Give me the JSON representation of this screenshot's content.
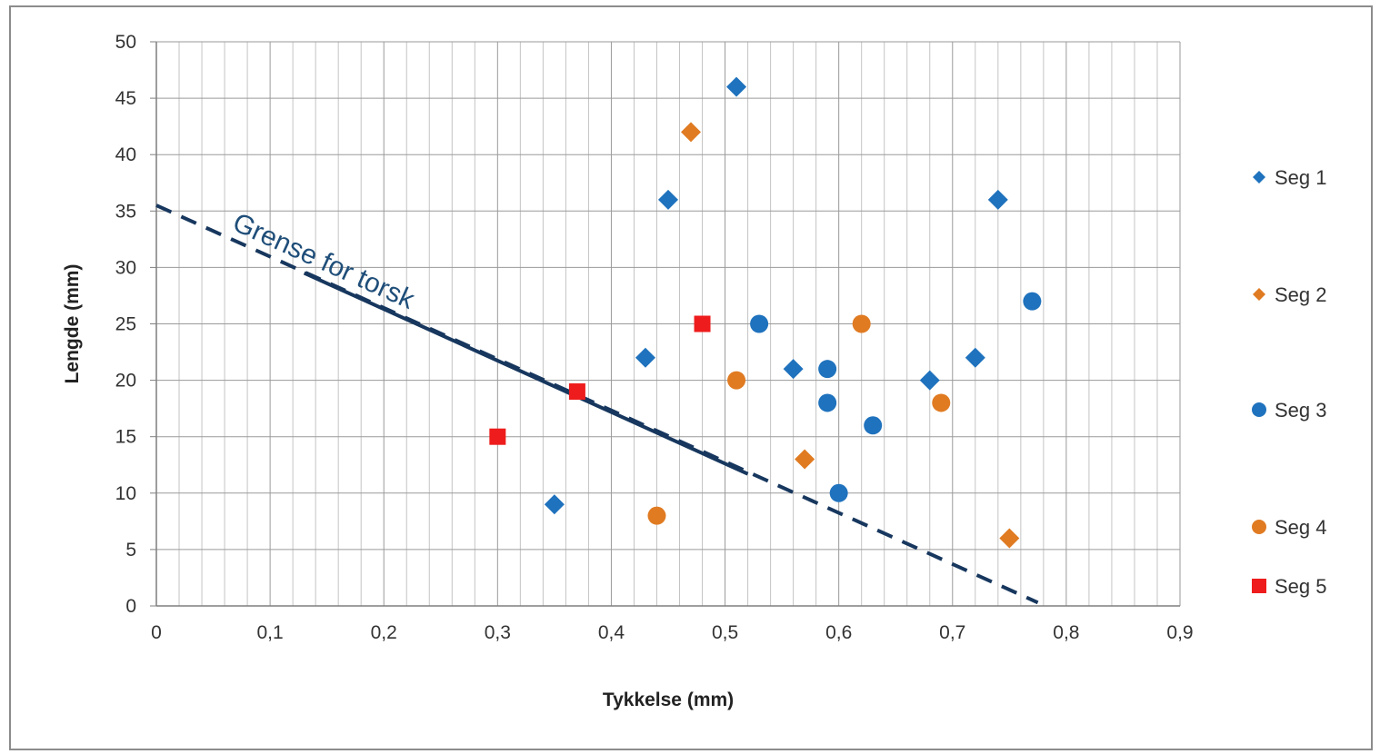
{
  "chart_data": {
    "type": "scatter",
    "xlabel": "Tykkelse (mm)",
    "ylabel": "Lengde (mm)",
    "xlim": [
      0,
      0.9
    ],
    "ylim": [
      0,
      50
    ],
    "x_ticks": [
      "0",
      "0,1",
      "0,2",
      "0,3",
      "0,4",
      "0,5",
      "0,6",
      "0,7",
      "0,8",
      "0,9"
    ],
    "y_ticks": [
      "0",
      "5",
      "10",
      "15",
      "20",
      "25",
      "30",
      "35",
      "40",
      "45",
      "50"
    ],
    "grid": true,
    "legend_position": "right",
    "series": [
      {
        "name": "Seg 1",
        "marker": "diamond",
        "color": "#1f72bd",
        "points": [
          [
            0.35,
            9
          ],
          [
            0.43,
            22
          ],
          [
            0.45,
            36
          ],
          [
            0.51,
            46
          ],
          [
            0.56,
            21
          ],
          [
            0.68,
            20
          ],
          [
            0.72,
            22
          ],
          [
            0.74,
            36
          ]
        ]
      },
      {
        "name": "Seg 2",
        "marker": "diamond",
        "color": "#e07b22",
        "points": [
          [
            0.47,
            42
          ],
          [
            0.57,
            13
          ],
          [
            0.75,
            6
          ]
        ]
      },
      {
        "name": "Seg 3",
        "marker": "circle",
        "color": "#1f72bd",
        "points": [
          [
            0.53,
            25
          ],
          [
            0.59,
            21
          ],
          [
            0.59,
            18
          ],
          [
            0.6,
            10
          ],
          [
            0.63,
            16
          ],
          [
            0.77,
            27
          ]
        ]
      },
      {
        "name": "Seg 4",
        "marker": "circle",
        "color": "#e07b22",
        "points": [
          [
            0.44,
            8
          ],
          [
            0.51,
            20
          ],
          [
            0.62,
            25
          ],
          [
            0.69,
            18
          ]
        ]
      },
      {
        "name": "Seg 5",
        "marker": "square",
        "color": "#ee1c1c",
        "points": [
          [
            0.3,
            15
          ],
          [
            0.37,
            19
          ],
          [
            0.48,
            25
          ]
        ]
      }
    ],
    "annotation": {
      "text": "Grense for torsk",
      "color": "#17375e",
      "line": [
        [
          0.0,
          35.5
        ],
        [
          0.775,
          0.3
        ]
      ],
      "solid_segment": [
        [
          0.13,
          29.5
        ],
        [
          0.52,
          11.7
        ]
      ]
    }
  }
}
